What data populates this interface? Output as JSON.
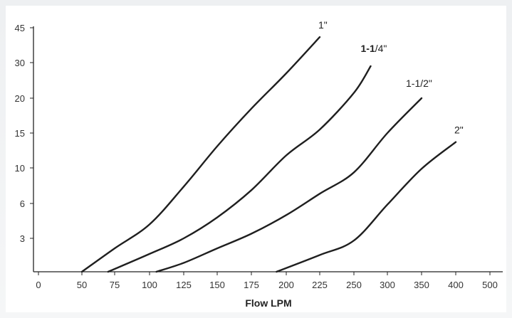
{
  "chart_data": {
    "type": "line",
    "title": "",
    "xlabel": "Flow LPM",
    "ylabel": "",
    "x_ticks": [
      "0",
      "50",
      "75",
      "100",
      "125",
      "150",
      "175",
      "200",
      "225",
      "250",
      "300",
      "350",
      "400",
      "500"
    ],
    "y_ticks": [
      "3",
      "6",
      "10",
      "15",
      "20",
      "30",
      "45"
    ],
    "grid": false,
    "legend": "none",
    "series": [
      {
        "name": "1\"",
        "bold_prefix": "",
        "rest": "1\"",
        "x": [
          50,
          75,
          100,
          125,
          150,
          175,
          200,
          225
        ],
        "y": [
          0,
          2.1,
          4.2,
          7.9,
          13.1,
          18.5,
          27,
          41
        ]
      },
      {
        "name": "1-1/4\"",
        "bold_prefix": "1-1",
        "rest": "/4\"",
        "x": [
          70,
          100,
          125,
          150,
          175,
          200,
          225,
          250,
          275
        ],
        "y": [
          0,
          1.6,
          3,
          4.8,
          7.5,
          11.8,
          15.5,
          21.5,
          29
        ]
      },
      {
        "name": "1-1/2\"",
        "bold_prefix": "",
        "rest": "1-1/2\"",
        "x": [
          105,
          125,
          150,
          175,
          200,
          225,
          250,
          300,
          350
        ],
        "y": [
          0,
          0.8,
          2.1,
          3.4,
          5,
          7.1,
          9.5,
          15,
          20
        ]
      },
      {
        "name": "2\"",
        "bold_prefix": "",
        "rest": "2\"",
        "x": [
          193,
          225,
          250,
          300,
          350,
          400
        ],
        "y": [
          0,
          1.5,
          2.8,
          5.9,
          9.9,
          13.7
        ]
      }
    ]
  }
}
